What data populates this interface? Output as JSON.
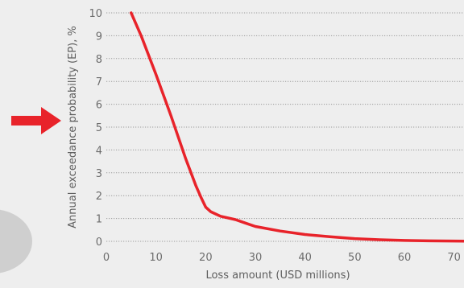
{
  "chart_data": {
    "type": "line",
    "title": "",
    "xlabel": "Loss amount (USD millions)",
    "ylabel": "Annual exceedance probability (EP), %",
    "xlim": [
      0,
      72
    ],
    "ylim": [
      0,
      10
    ],
    "x_ticks": [
      "0",
      "10",
      "20",
      "30",
      "40",
      "50",
      "60",
      "70"
    ],
    "y_ticks": [
      "0",
      "1",
      "2",
      "3",
      "4",
      "5",
      "6",
      "7",
      "8",
      "9",
      "10"
    ],
    "grid": "horizontal-dotted",
    "series": [
      {
        "x": [
          5,
          7,
          10,
          13,
          16,
          18,
          19,
          20,
          21,
          23,
          26,
          28,
          30,
          35,
          40,
          45,
          50,
          55,
          60,
          65,
          72
        ],
        "y": [
          10,
          9,
          7.3,
          5.5,
          3.6,
          2.45,
          1.95,
          1.5,
          1.3,
          1.1,
          0.95,
          0.8,
          0.65,
          0.45,
          0.3,
          0.2,
          0.12,
          0.07,
          0.04,
          0.02,
          0.01
        ]
      }
    ],
    "line_color": "#e8232a",
    "decorations": {
      "arrow_color": "#e8232a",
      "shape_color": "#cfcfcf"
    }
  }
}
